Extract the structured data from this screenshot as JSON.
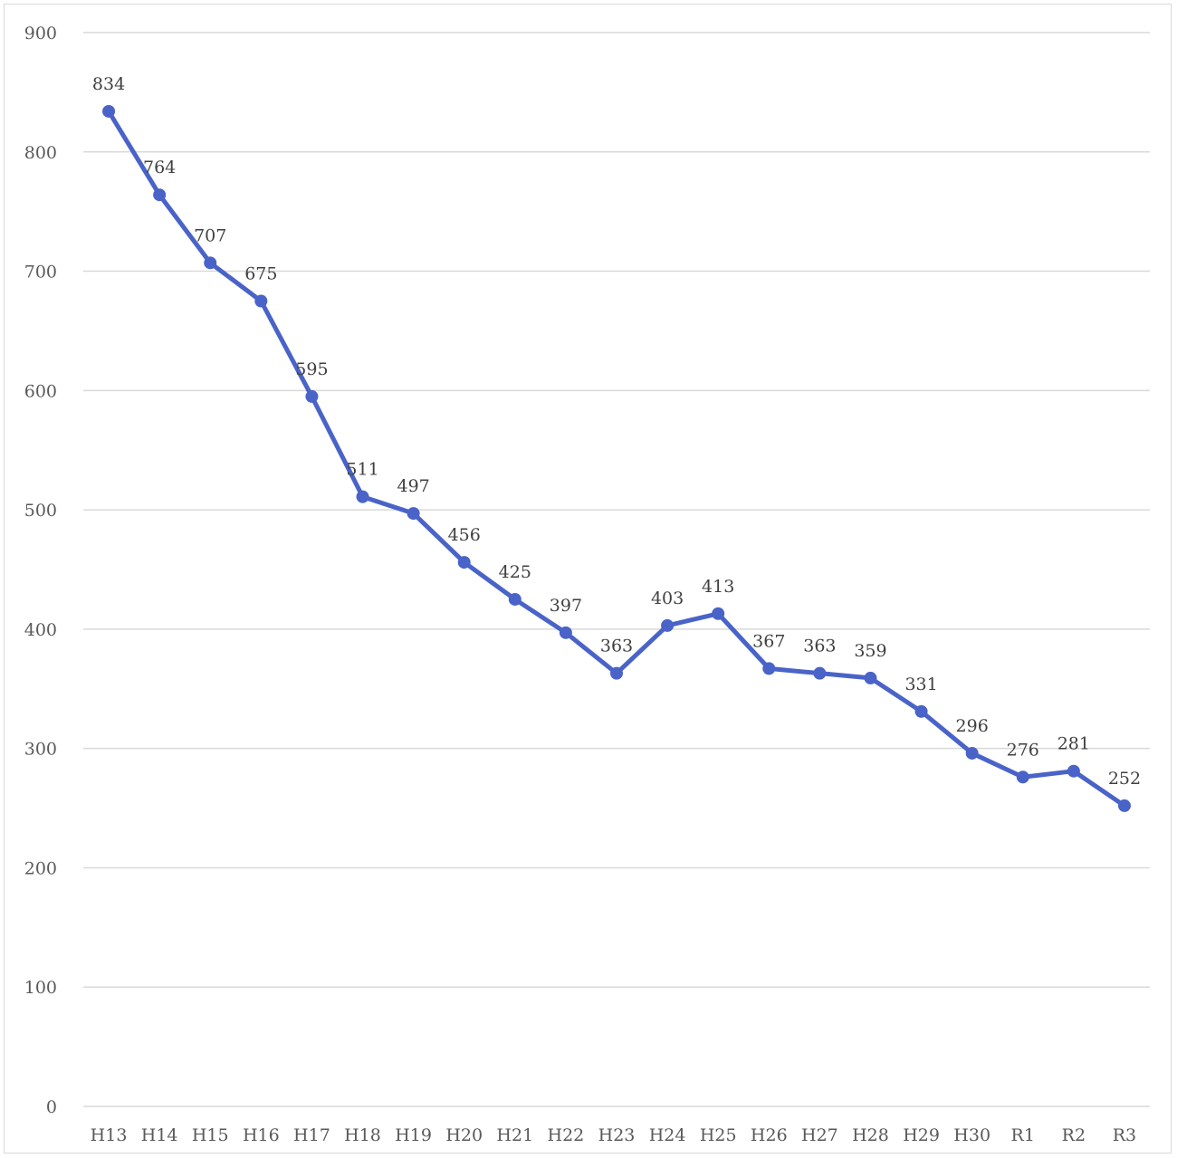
{
  "chart_data": {
    "type": "line",
    "title": "",
    "xlabel": "",
    "ylabel": "",
    "categories": [
      "H13",
      "H14",
      "H15",
      "H16",
      "H17",
      "H18",
      "H19",
      "H20",
      "H21",
      "H22",
      "H23",
      "H24",
      "H25",
      "H26",
      "H27",
      "H28",
      "H29",
      "H30",
      "R1",
      "R2",
      "R3"
    ],
    "series": [
      {
        "values": [
          834,
          764,
          707,
          675,
          595,
          511,
          497,
          456,
          425,
          397,
          363,
          403,
          413,
          367,
          363,
          359,
          331,
          296,
          276,
          281,
          252
        ],
        "color": "#4a63c8"
      }
    ],
    "ylim": [
      0,
      900
    ],
    "yticks": [
      0,
      100,
      200,
      300,
      400,
      500,
      600,
      700,
      800,
      900
    ],
    "grid": true,
    "legend": "none",
    "data_labels": true
  }
}
